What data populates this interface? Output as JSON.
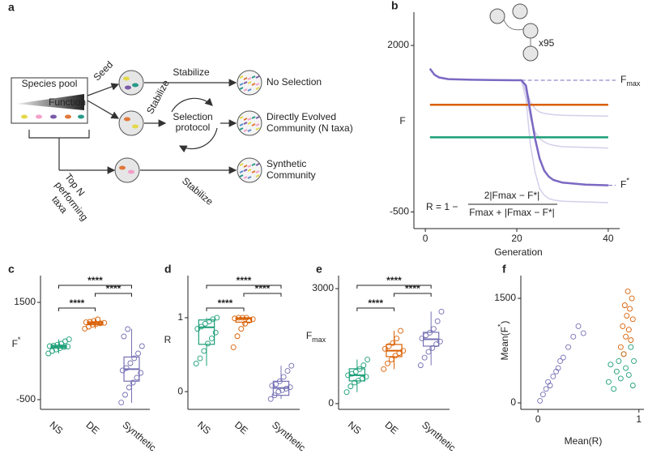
{
  "panel_a": {
    "panel": "a",
    "species_pool": "Species pool",
    "function": "Function",
    "arrows": [
      "Seed",
      "Stabilize",
      "Stabilize",
      "Stabilize"
    ],
    "selection_protocol": [
      "Selection",
      "protocol"
    ],
    "top_n": [
      "Top N",
      "performing",
      "taxa"
    ],
    "outcomes": [
      {
        "lines": [
          "No Selection"
        ],
        "color": "#1b9e77"
      },
      {
        "lines": [
          "Directly Evolved",
          "Community (N taxa)"
        ],
        "color": "#d95f02"
      },
      {
        "lines": [
          "Synthetic",
          "Community"
        ],
        "color": "#7570b3"
      }
    ]
  },
  "chart_data": [
    {
      "type": "line",
      "panel": "b",
      "ylabel": [
        {
          "text": "F"
        }
      ],
      "xlabel": "Generation",
      "xlim": [
        -2.5,
        42.5
      ],
      "xticks": [
        0,
        20,
        40
      ],
      "ylim": [
        -750,
        2500
      ],
      "yticks": [
        -500,
        2000
      ],
      "x": [
        1,
        2,
        3,
        5,
        10,
        15,
        20,
        21,
        22,
        23,
        24,
        25,
        26,
        27,
        28,
        30,
        35,
        40
      ],
      "series": [
        {
          "color": "#d3cfea",
          "width": 1.5,
          "values": [
            null,
            null,
            null,
            null,
            null,
            null,
            null,
            1478,
            1300,
            900,
            700,
            600,
            550,
            520,
            500,
            480,
            470,
            460
          ]
        },
        {
          "color": "#d3cfea",
          "width": 1.5,
          "values": [
            null,
            null,
            null,
            null,
            null,
            null,
            null,
            1478,
            1200,
            500,
            100,
            -150,
            -250,
            -300,
            -320,
            -340,
            -350,
            -360
          ]
        },
        {
          "color": "#d3cfea",
          "width": 1.5,
          "values": [
            null,
            null,
            null,
            null,
            null,
            null,
            null,
            1478,
            1350,
            1150,
            1050,
            1000,
            980,
            970,
            960,
            950,
            945,
            940
          ]
        },
        {
          "color": "#d95f02",
          "width": 2.5,
          "values": [
            1110,
            1110,
            1110,
            1110,
            1110,
            1110,
            1110,
            1110,
            1110,
            1110,
            1110,
            1110,
            1110,
            1110,
            1110,
            1110,
            1110,
            1110
          ]
        },
        {
          "color": "#1b9e77",
          "width": 2.5,
          "values": [
            620,
            620,
            620,
            620,
            620,
            620,
            620,
            620,
            620,
            620,
            620,
            620,
            620,
            620,
            620,
            620,
            620,
            620
          ]
        },
        {
          "color": "#7b68c2",
          "width": 2.5,
          "values": [
            1650,
            1560,
            1520,
            1495,
            1485,
            1480,
            1478,
            1478,
            1400,
            1000,
            600,
            300,
            120,
            30,
            -20,
            -60,
            -90,
            -100
          ]
        }
      ],
      "fmax_label": [
        {
          "text": "F"
        },
        {
          "text": "max",
          "shift": "sub"
        }
      ],
      "fstar_label": [
        {
          "text": "F"
        },
        {
          "text": "*",
          "shift": "super"
        }
      ],
      "formula": {
        "lhs": "R = 1 −",
        "numerator": "2|Fmax − F*|",
        "denominator": "Fmax + |Fmax − F*|"
      },
      "repeat": "x95"
    },
    {
      "type": "box",
      "panel": "c",
      "ylabel": [
        {
          "text": "F"
        },
        {
          "text": "*",
          "shift": "super"
        }
      ],
      "categories": [
        "NS",
        "DE",
        "Synthetic"
      ],
      "colors": [
        "#1b9e77",
        "#d95f02",
        "#7570b3"
      ],
      "ylim": [
        -700,
        2050
      ],
      "yticks": [
        -500,
        1500
      ],
      "boxes": [
        {
          "whislo": 450,
          "q1": 560,
          "med": 590,
          "q3": 620,
          "whishi": 740
        },
        {
          "whislo": 960,
          "q1": 1040,
          "med": 1070,
          "q3": 1100,
          "whishi": 1150
        },
        {
          "whislo": -566,
          "q1": -120,
          "med": 128,
          "q3": 376,
          "whishi": 955
        }
      ],
      "points": [
        [
          450,
          500,
          530,
          560,
          580,
          590,
          600,
          610,
          630,
          650,
          700,
          740
        ],
        [
          960,
          1000,
          1040,
          1060,
          1070,
          1080,
          1090,
          1100,
          1120,
          1150
        ],
        [
          -560,
          -400,
          -250,
          -150,
          -50,
          50,
          100,
          150,
          250,
          350,
          450,
          600,
          800,
          950
        ]
      ],
      "significance": [
        "****",
        "****",
        "****"
      ]
    },
    {
      "type": "box",
      "panel": "d",
      "ylabel": [
        {
          "text": "R"
        }
      ],
      "categories": [
        "NS",
        "DE",
        "Synthetic"
      ],
      "colors": [
        "#1b9e77",
        "#d95f02",
        "#7570b3"
      ],
      "ylim": [
        -0.24,
        1.57
      ],
      "yticks": [
        0,
        1
      ],
      "boxes": [
        {
          "whislo": 0.35,
          "q1": 0.64,
          "med": 0.87,
          "q3": 0.97,
          "whishi": 1.0
        },
        {
          "whislo": 0.88,
          "q1": 0.94,
          "med": 0.99,
          "q3": 1.0,
          "whishi": 1.0
        },
        {
          "whislo": -0.1,
          "q1": -0.05,
          "med": 0.05,
          "q3": 0.14,
          "whishi": 0.35
        }
      ],
      "points": [
        [
          0.38,
          0.45,
          0.55,
          0.65,
          0.72,
          0.8,
          0.85,
          0.88,
          0.92,
          0.95,
          0.98,
          1.0
        ],
        [
          0.6,
          0.75,
          0.85,
          0.92,
          0.96,
          0.98,
          0.99,
          1.0,
          1.0,
          1.0
        ],
        [
          -0.1,
          -0.05,
          0,
          0.02,
          0.04,
          0.06,
          0.08,
          0.1,
          0.14,
          0.2,
          0.28,
          0.35
        ]
      ],
      "significance": [
        "****",
        "****",
        "****"
      ]
    },
    {
      "type": "box",
      "panel": "e",
      "ylabel": [
        {
          "text": "F"
        },
        {
          "text": "max",
          "shift": "sub"
        }
      ],
      "categories": [
        "NS",
        "DE",
        "Synthetic"
      ],
      "colors": [
        "#1b9e77",
        "#d95f02",
        "#7570b3"
      ],
      "ylim": [
        -150,
        3340
      ],
      "yticks": [
        0,
        3000
      ],
      "boxes": [
        {
          "whislo": 300,
          "q1": 592,
          "med": 740,
          "q3": 909,
          "whishi": 1150
        },
        {
          "whislo": 900,
          "q1": 1226,
          "med": 1380,
          "q3": 1543,
          "whishi": 1900
        },
        {
          "whislo": 1000,
          "q1": 1500,
          "med": 1680,
          "q3": 1860,
          "whishi": 2400
        }
      ],
      "points": [
        [
          300,
          450,
          550,
          600,
          650,
          700,
          740,
          780,
          830,
          900,
          1000,
          1150
        ],
        [
          900,
          1050,
          1150,
          1250,
          1320,
          1380,
          1430,
          1500,
          1580,
          1700,
          1900
        ],
        [
          1000,
          1200,
          1350,
          1450,
          1550,
          1620,
          1700,
          1780,
          1850,
          1950,
          2150,
          2400
        ]
      ],
      "significance": [
        "****",
        "****",
        "****"
      ]
    },
    {
      "type": "scatter",
      "panel": "f",
      "xlabel": "Mean(R)",
      "ylabel": [
        {
          "text": "Mean(F"
        },
        {
          "text": "*",
          "shift": "super"
        },
        {
          "text": ")"
        }
      ],
      "xlim": [
        -0.17,
        1.05
      ],
      "xticks": [
        0,
        1
      ],
      "ylim": [
        -93,
        1826
      ],
      "yticks": [
        0,
        1500
      ],
      "series": [
        {
          "color": "#1b9e77",
          "x": [
            0.7,
            0.72,
            0.75,
            0.78,
            0.8,
            0.82,
            0.85,
            0.87,
            0.9,
            0.92,
            0.94,
            0.95
          ],
          "values": [
            300,
            550,
            200,
            450,
            600,
            350,
            700,
            500,
            400,
            800,
            250,
            600
          ]
        },
        {
          "color": "#d95f02",
          "x": [
            0.82,
            0.84,
            0.85,
            0.86,
            0.87,
            0.88,
            0.89,
            0.9,
            0.91,
            0.92,
            0.93,
            0.94
          ],
          "values": [
            800,
            1100,
            700,
            1400,
            950,
            1250,
            1600,
            1050,
            1350,
            900,
            1500,
            1200
          ]
        },
        {
          "color": "#7570b3",
          "x": [
            0.02,
            0.05,
            0.08,
            0.1,
            0.12,
            0.15,
            0.18,
            0.2,
            0.22,
            0.25,
            0.3,
            0.35,
            0.4,
            0.45
          ],
          "values": [
            30,
            120,
            200,
            300,
            250,
            380,
            450,
            500,
            600,
            650,
            800,
            950,
            1100,
            1000
          ]
        }
      ]
    }
  ]
}
